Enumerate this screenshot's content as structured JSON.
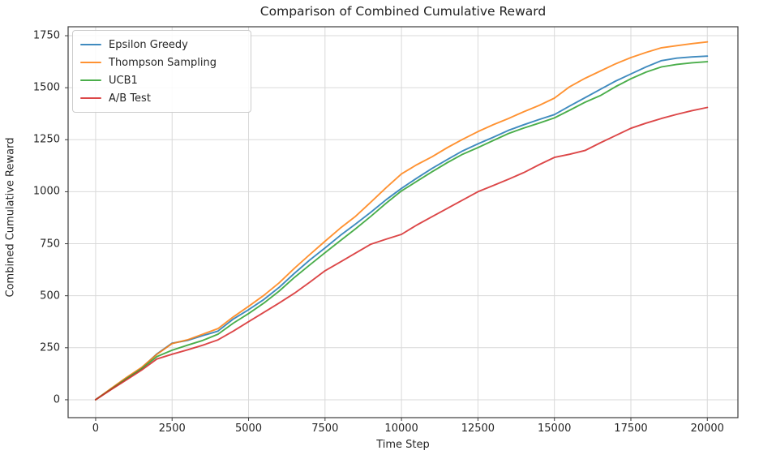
{
  "chart_data": {
    "type": "line",
    "title": "Comparison of Combined Cumulative Reward",
    "xlabel": "Time Step",
    "ylabel": "Combined Cumulative Reward",
    "xlim": [
      -900,
      21000
    ],
    "ylim": [
      -86,
      1793
    ],
    "x_ticks": [
      0,
      2500,
      5000,
      7500,
      10000,
      12500,
      15000,
      17500,
      20000
    ],
    "y_ticks": [
      0,
      250,
      500,
      750,
      1000,
      1250,
      1500,
      1750
    ],
    "grid": true,
    "legend_position": "upper left",
    "x": [
      0,
      500,
      1000,
      1500,
      2000,
      2500,
      3000,
      3500,
      4000,
      4500,
      5000,
      5500,
      6000,
      6500,
      7000,
      7500,
      8000,
      8500,
      9000,
      9500,
      10000,
      10500,
      11000,
      11500,
      12000,
      12500,
      13000,
      13500,
      14000,
      14500,
      15000,
      15500,
      16000,
      16500,
      17000,
      17500,
      18000,
      18500,
      19000,
      19500,
      20000
    ],
    "series": [
      {
        "name": "Epsilon Greedy",
        "color": "#1f77b4",
        "values": [
          0,
          52,
          104,
          152,
          220,
          272,
          285,
          308,
          330,
          388,
          433,
          482,
          540,
          608,
          672,
          730,
          790,
          845,
          902,
          962,
          1016,
          1065,
          1112,
          1155,
          1196,
          1230,
          1262,
          1295,
          1322,
          1347,
          1371,
          1412,
          1452,
          1492,
          1532,
          1566,
          1600,
          1630,
          1642,
          1648,
          1652
        ]
      },
      {
        "name": "Thompson Sampling",
        "color": "#ff7f0e",
        "values": [
          0,
          54,
          106,
          155,
          218,
          270,
          288,
          315,
          342,
          398,
          449,
          502,
          562,
          632,
          698,
          762,
          825,
          882,
          950,
          1020,
          1086,
          1130,
          1168,
          1212,
          1252,
          1289,
          1322,
          1352,
          1385,
          1415,
          1450,
          1505,
          1545,
          1580,
          1615,
          1645,
          1670,
          1692,
          1702,
          1712,
          1720
        ]
      },
      {
        "name": "UCB1",
        "color": "#2ca02c",
        "values": [
          0,
          50,
          100,
          148,
          207,
          238,
          262,
          285,
          315,
          368,
          414,
          465,
          522,
          588,
          648,
          707,
          765,
          822,
          882,
          945,
          1004,
          1050,
          1096,
          1140,
          1180,
          1212,
          1246,
          1280,
          1306,
          1330,
          1355,
          1392,
          1430,
          1462,
          1505,
          1543,
          1575,
          1600,
          1612,
          1620,
          1625
        ]
      },
      {
        "name": "A/B Test",
        "color": "#d62728",
        "values": [
          0,
          48,
          95,
          142,
          196,
          219,
          240,
          262,
          288,
          330,
          375,
          420,
          465,
          512,
          565,
          620,
          662,
          705,
          748,
          772,
          795,
          840,
          880,
          920,
          960,
          1000,
          1030,
          1060,
          1092,
          1130,
          1165,
          1180,
          1198,
          1235,
          1270,
          1305,
          1330,
          1352,
          1372,
          1390,
          1405
        ]
      }
    ],
    "style": {
      "grid_color": "#d9d9d9",
      "spine_color": "#3d3d3d",
      "text_color": "#262626",
      "line_opacity": 0.85,
      "background": "#ffffff"
    }
  }
}
